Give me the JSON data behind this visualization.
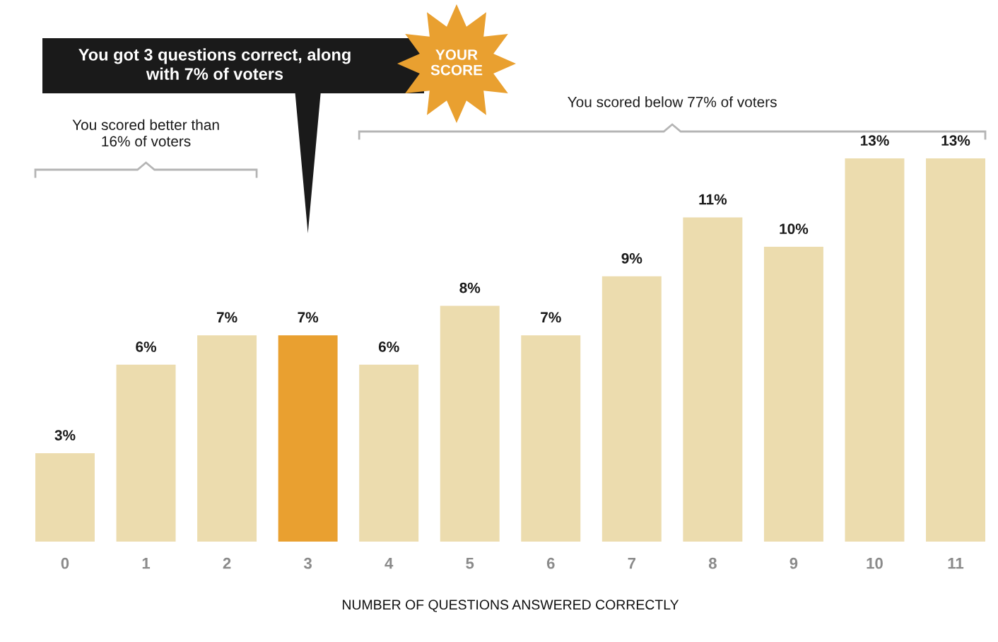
{
  "chart_data": {
    "type": "bar",
    "categories": [
      "0",
      "1",
      "2",
      "3",
      "4",
      "5",
      "6",
      "7",
      "8",
      "9",
      "10",
      "11"
    ],
    "values": [
      3,
      6,
      7,
      7,
      6,
      8,
      7,
      9,
      11,
      10,
      13,
      13
    ],
    "colors": [
      "#ecdcae",
      "#ecdcae",
      "#ecdcae",
      "#e9a030",
      "#ecdcae",
      "#ecdcae",
      "#ecdcae",
      "#ecdcae",
      "#ecdcae",
      "#ecdcae",
      "#ecdcae",
      "#ecdcae"
    ],
    "value_labels": [
      "3%",
      "6%",
      "7%",
      "7%",
      "6%",
      "8%",
      "7%",
      "9%",
      "11%",
      "10%",
      "13%",
      "13%"
    ],
    "xlabel": "NUMBER OF QUESTIONS ANSWERED CORRECTLY",
    "tick_labels": "x",
    "annotations": [
      "You got 3 questions correct, along\nwith 7% of voters",
      "YOUR\nSCORE",
      "You scored better than\n16% of voters",
      "You scored below 77% of voters"
    ]
  }
}
